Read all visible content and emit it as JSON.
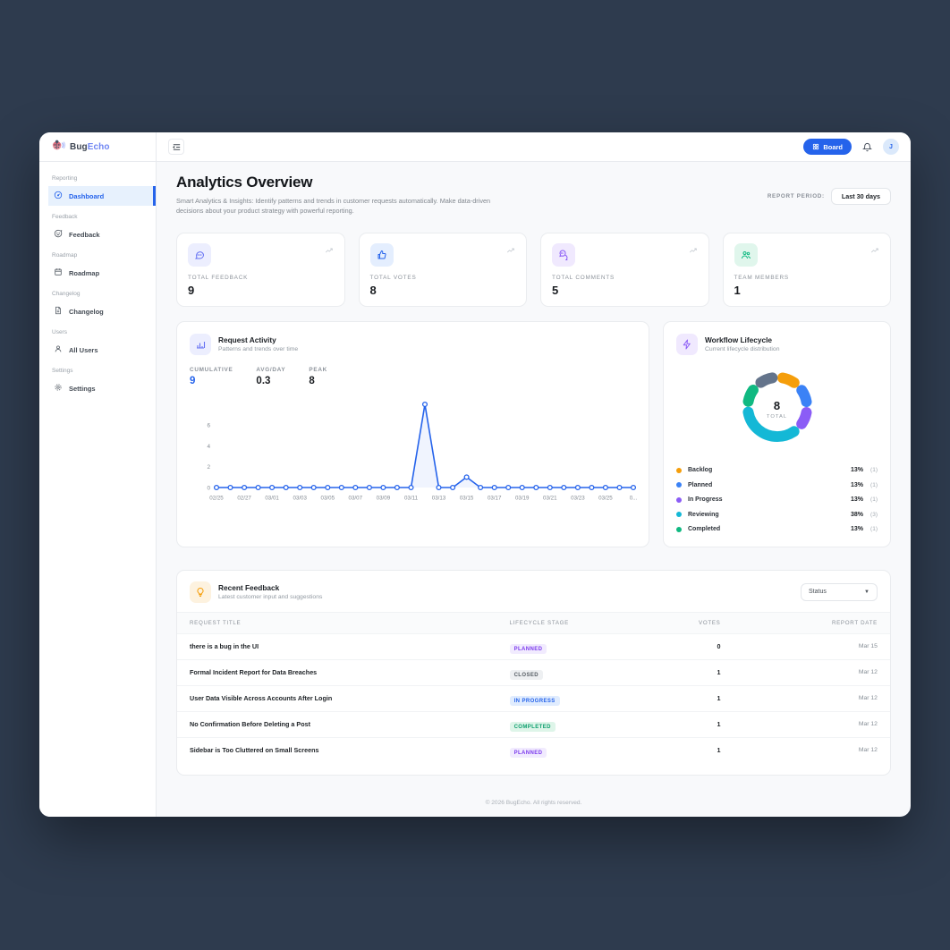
{
  "app": {
    "brand_bug": "Bug",
    "brand_echo": "Echo"
  },
  "topbar": {
    "board_label": "Board",
    "avatar_initial": "J"
  },
  "sidebar": {
    "sections": [
      {
        "label": "Reporting",
        "items": [
          {
            "label": "Dashboard",
            "icon": "gauge",
            "active": true
          }
        ]
      },
      {
        "label": "Feedback",
        "items": [
          {
            "label": "Feedback",
            "icon": "chat-smiley",
            "active": false
          }
        ]
      },
      {
        "label": "Roadmap",
        "items": [
          {
            "label": "Roadmap",
            "icon": "calendar",
            "active": false
          }
        ]
      },
      {
        "label": "Changelog",
        "items": [
          {
            "label": "Changelog",
            "icon": "document",
            "active": false
          }
        ]
      },
      {
        "label": "Users",
        "items": [
          {
            "label": "All Users",
            "icon": "user",
            "active": false
          }
        ]
      },
      {
        "label": "Settings",
        "items": [
          {
            "label": "Settings",
            "icon": "gear",
            "active": false
          }
        ]
      }
    ]
  },
  "page": {
    "title": "Analytics Overview",
    "description": "Smart Analytics & Insights: Identify patterns and trends in customer requests automatically. Make data-driven decisions about your product strategy with powerful reporting.",
    "report_period_label": "REPORT PERIOD:",
    "report_period_value": "Last 30 days"
  },
  "stats": [
    {
      "label": "TOTAL FEEDBACK",
      "value": "9",
      "icon": "message-bubble",
      "tile_bg": "#eceefe",
      "icon_color": "#6571f3"
    },
    {
      "label": "TOTAL VOTES",
      "value": "8",
      "icon": "thumbs-up",
      "tile_bg": "#e4eefe",
      "icon_color": "#2563eb"
    },
    {
      "label": "TOTAL COMMENTS",
      "value": "5",
      "icon": "comments",
      "tile_bg": "#f0e9fe",
      "icon_color": "#8b5cf6"
    },
    {
      "label": "TEAM MEMBERS",
      "value": "1",
      "icon": "team",
      "tile_bg": "#e0f6ec",
      "icon_color": "#10b981"
    }
  ],
  "activity": {
    "title": "Request Activity",
    "subtitle": "Patterns and trends over time",
    "metrics": [
      {
        "label": "CUMULATIVE",
        "value": "9",
        "accent": true
      },
      {
        "label": "AVG/DAY",
        "value": "0.3",
        "accent": false
      },
      {
        "label": "PEAK",
        "value": "8",
        "accent": false
      }
    ]
  },
  "lifecycle": {
    "title": "Workflow Lifecycle",
    "subtitle": "Current lifecycle distribution",
    "total": "8",
    "total_label": "TOTAL"
  },
  "chart_data": [
    {
      "id": "request-activity",
      "type": "line",
      "title": "Request Activity",
      "x": [
        "02/25",
        "02/26",
        "02/27",
        "02/28",
        "03/01",
        "03/02",
        "03/03",
        "03/04",
        "03/05",
        "03/06",
        "03/07",
        "03/08",
        "03/09",
        "03/10",
        "03/11",
        "03/12",
        "03/13",
        "03/14",
        "03/15",
        "03/16",
        "03/17",
        "03/18",
        "03/19",
        "03/20",
        "03/21",
        "03/22",
        "03/23",
        "03/24",
        "03/25",
        "03/26",
        "03/27"
      ],
      "values": [
        0,
        0,
        0,
        0,
        0,
        0,
        0,
        0,
        0,
        0,
        0,
        0,
        0,
        0,
        0,
        8,
        0,
        0,
        1,
        0,
        0,
        0,
        0,
        0,
        0,
        0,
        0,
        0,
        0,
        0,
        0
      ],
      "yticks": [
        0,
        2,
        4,
        6
      ],
      "ylim": [
        0,
        8
      ],
      "x_last_label_display": "0...",
      "line_color": "#2563eb",
      "grid": false,
      "legend": "none"
    },
    {
      "id": "workflow-lifecycle",
      "type": "donut",
      "title": "Workflow Lifecycle",
      "total": 8,
      "segments": [
        {
          "name": "Backlog",
          "value": 1,
          "pct": "13%",
          "count": "(1)",
          "color": "#f59e0b",
          "in_legend": true
        },
        {
          "name": "Planned",
          "value": 1,
          "pct": "13%",
          "count": "(1)",
          "color": "#3b82f6",
          "in_legend": true
        },
        {
          "name": "In Progress",
          "value": 1,
          "pct": "13%",
          "count": "(1)",
          "color": "#8b5cf6",
          "in_legend": true
        },
        {
          "name": "Reviewing",
          "value": 3,
          "pct": "38%",
          "count": "(3)",
          "color": "#14b8d6",
          "in_legend": true
        },
        {
          "name": "Completed",
          "value": 1,
          "pct": "13%",
          "count": "(1)",
          "color": "#10b981",
          "in_legend": true
        },
        {
          "name": "unlabeled",
          "value": 1,
          "pct": "13%",
          "count": "(1)",
          "color": "#64748b",
          "in_legend": false
        }
      ],
      "legend": "bottom"
    }
  ],
  "feedback": {
    "title": "Recent Feedback",
    "subtitle": "Latest customer input and suggestions",
    "filter_label": "Status",
    "columns": [
      "REQUEST TITLE",
      "LIFECYCLE STAGE",
      "VOTES",
      "REPORT DATE"
    ],
    "stage_styles": {
      "PLANNED": {
        "bg": "#f1ebfe",
        "color": "#7c3aed"
      },
      "CLOSED": {
        "bg": "#eef0f2",
        "color": "#555c63"
      },
      "IN PROGRESS": {
        "bg": "#e0ecfe",
        "color": "#2563eb"
      },
      "COMPLETED": {
        "bg": "#def5e9",
        "color": "#0d9f6e"
      }
    },
    "rows": [
      {
        "title": "there is a bug in the UI",
        "stage": "PLANNED",
        "votes": "0",
        "date": "Mar 15"
      },
      {
        "title": "Formal Incident Report for Data Breaches",
        "stage": "CLOSED",
        "votes": "1",
        "date": "Mar 12"
      },
      {
        "title": "User Data Visible Across Accounts After Login",
        "stage": "IN PROGRESS",
        "votes": "1",
        "date": "Mar 12"
      },
      {
        "title": "No Confirmation Before Deleting a Post",
        "stage": "COMPLETED",
        "votes": "1",
        "date": "Mar 12"
      },
      {
        "title": "Sidebar is Too Cluttered on Small Screens",
        "stage": "PLANNED",
        "votes": "1",
        "date": "Mar 12"
      }
    ]
  },
  "footer": {
    "copyright": "© 2026 BugEcho. All rights reserved."
  }
}
